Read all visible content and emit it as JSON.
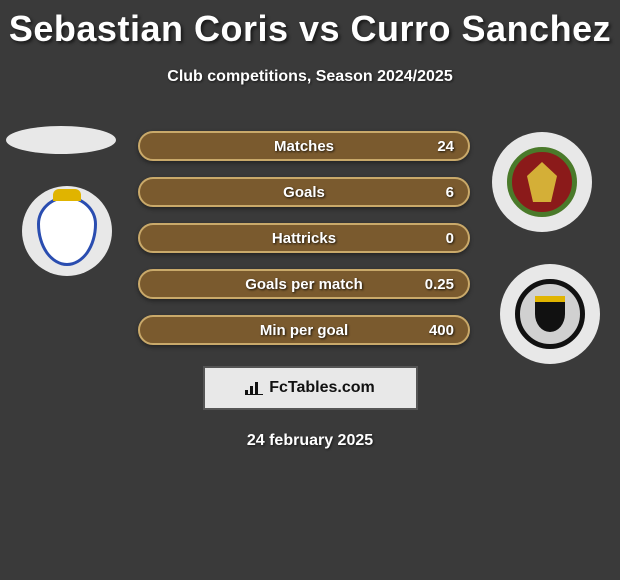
{
  "title": "Sebastian Coris vs Curro Sanchez",
  "subtitle": "Club competitions, Season 2024/2025",
  "date": "24 february 2025",
  "footer_brand": "FcTables.com",
  "colors": {
    "background": "#3a3a3a",
    "text": "#ffffff",
    "row_fill": "#7a5a2e",
    "row_border": "#c9a96a",
    "footer_bg": "#e8e8e8",
    "footer_text": "#111111"
  },
  "typography": {
    "title_fontsize": 36,
    "title_weight": 900,
    "subtitle_fontsize": 16,
    "stat_label_fontsize": 15,
    "date_fontsize": 16
  },
  "stats": [
    {
      "label": "Matches",
      "right_value": "24"
    },
    {
      "label": "Goals",
      "right_value": "6"
    },
    {
      "label": "Hattricks",
      "right_value": "0"
    },
    {
      "label": "Goals per match",
      "right_value": "0.25"
    },
    {
      "label": "Min per goal",
      "right_value": "400"
    }
  ],
  "left_player": {
    "name": "Sebastian Coris",
    "club": "Real Oviedo"
  },
  "right_player": {
    "name": "Curro Sanchez",
    "clubs": [
      "Belarus FA",
      "Burgos CF"
    ]
  }
}
